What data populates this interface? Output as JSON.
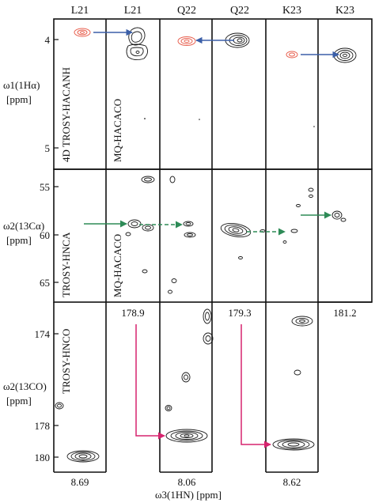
{
  "columns": [
    "L21",
    "L21",
    "Q22",
    "Q22",
    "K23",
    "K23"
  ],
  "panel_labels": {
    "trosy_hacanh": "4D TROSY-HACANH",
    "mq_hacaco_top": "MQ-HACACO",
    "trosy_hnca": "TROSY-HNCA",
    "mq_hacaco_mid": "MQ-HACACO",
    "trosy_hnco": "TROSY-HNCO"
  },
  "axes": {
    "row1": {
      "label_main": "ω1(1Hα)",
      "unit": "[ppm]",
      "ticks": [
        "4",
        "5"
      ]
    },
    "row2": {
      "label_main": "ω2(13Cα)",
      "unit": "[ppm]",
      "ticks": [
        "55",
        "60",
        "65"
      ]
    },
    "row3": {
      "label_main": "ω2(13CO)",
      "unit": "[ppm]",
      "ticks": [
        "174",
        "178",
        "180"
      ]
    },
    "x": {
      "label": "ω3(1HN) [ppm]",
      "ticks": [
        "8.69",
        "8.06",
        "8.62"
      ]
    }
  },
  "co_values": [
    "178.9",
    "179.3",
    "181.2"
  ],
  "colors": {
    "red": "#e8604f",
    "blue": "#3b5fa8",
    "green": "#2e8b57",
    "magenta": "#d6246e",
    "contour": "#1a1a1a"
  }
}
